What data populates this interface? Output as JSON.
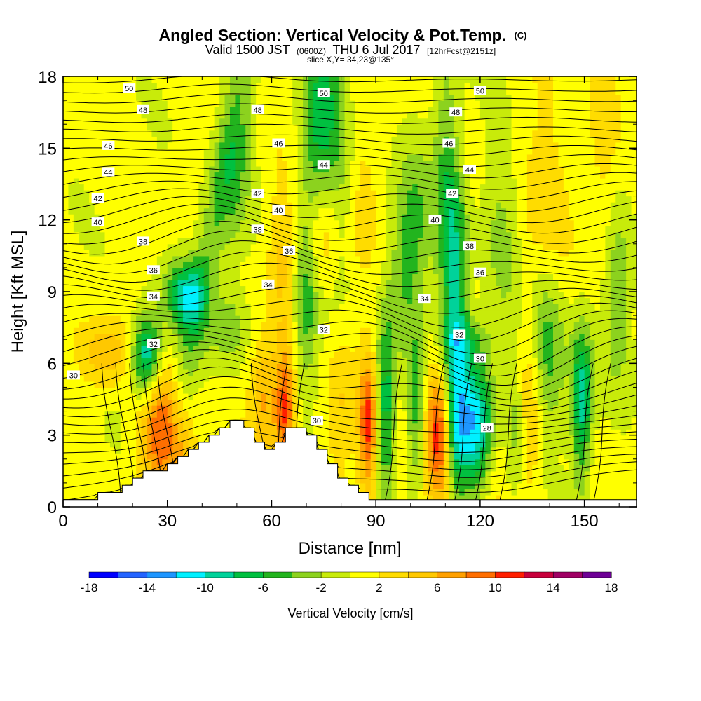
{
  "header": {
    "title": "Angled Section: Vertical Velocity & Pot.Temp.",
    "title_suffix": "(C)",
    "subtitle_a": "Valid 1500 JST",
    "subtitle_b": "(0600Z)",
    "subtitle_c": "THU 6 Jul 2017",
    "subtitle_d": "[12hrFcst@2151z]",
    "slice": "slice X,Y= 34,23@135°"
  },
  "chart_data": {
    "type": "heatmap",
    "xlabel": "Distance [nm]",
    "ylabel": "Height [Kft MSL]",
    "xlim": [
      0,
      165
    ],
    "ylim": [
      0,
      18
    ],
    "xticks": [
      0,
      30,
      60,
      90,
      120,
      150
    ],
    "yticks": [
      0,
      3,
      6,
      9,
      12,
      15,
      18
    ],
    "colorbar": {
      "label": "Vertical Velocity [cm/s]",
      "bounds": [
        -18,
        -16,
        -14,
        -12,
        -10,
        -8,
        -6,
        -4,
        -2,
        0,
        2,
        4,
        6,
        8,
        10,
        12,
        14,
        16,
        18
      ],
      "tick_labels": [
        "-18",
        "-14",
        "-10",
        "-6",
        "-2",
        "2",
        "6",
        "10",
        "14",
        "18"
      ],
      "colors": [
        "#0000ff",
        "#2464ff",
        "#1e96ff",
        "#00f0ff",
        "#00d29a",
        "#00c040",
        "#22b41e",
        "#8cd21e",
        "#c8eb0a",
        "#ffff00",
        "#ffdc00",
        "#ffc800",
        "#ffa000",
        "#ff6e00",
        "#ff1e00",
        "#c8003c",
        "#a00064",
        "#6e0096"
      ]
    },
    "terrain": [
      [
        0,
        0.3
      ],
      [
        10,
        0.3
      ],
      [
        10,
        0.6
      ],
      [
        17,
        0.6
      ],
      [
        17,
        0.9
      ],
      [
        20,
        0.9
      ],
      [
        20,
        1.2
      ],
      [
        23,
        1.2
      ],
      [
        23,
        1.5
      ],
      [
        30,
        1.5
      ],
      [
        30,
        1.8
      ],
      [
        33,
        1.8
      ],
      [
        33,
        2.1
      ],
      [
        36,
        2.1
      ],
      [
        36,
        2.4
      ],
      [
        39,
        2.4
      ],
      [
        39,
        2.7
      ],
      [
        42,
        2.7
      ],
      [
        42,
        3.0
      ],
      [
        45,
        3.0
      ],
      [
        45,
        3.3
      ],
      [
        48,
        3.3
      ],
      [
        48,
        3.6
      ],
      [
        52,
        3.6
      ],
      [
        52,
        3.3
      ],
      [
        55,
        3.3
      ],
      [
        55,
        2.7
      ],
      [
        58,
        2.7
      ],
      [
        58,
        2.4
      ],
      [
        61,
        2.4
      ],
      [
        61,
        2.7
      ],
      [
        64,
        2.7
      ],
      [
        64,
        3.3
      ],
      [
        70,
        3.3
      ],
      [
        70,
        3.0
      ],
      [
        73,
        3.0
      ],
      [
        73,
        2.4
      ],
      [
        76,
        2.4
      ],
      [
        76,
        1.8
      ],
      [
        79,
        1.8
      ],
      [
        79,
        1.2
      ],
      [
        82,
        1.2
      ],
      [
        82,
        0.9
      ],
      [
        85,
        0.9
      ],
      [
        85,
        0.6
      ],
      [
        88,
        0.6
      ],
      [
        88,
        0.3
      ],
      [
        165,
        0.3
      ]
    ],
    "isentropes": {
      "label": "Pot.Temp. (C)",
      "values": [
        28,
        30,
        32,
        34,
        36,
        38,
        40,
        42,
        44,
        46,
        48,
        50
      ]
    },
    "contour_labels": [
      {
        "text": "50",
        "x": 19,
        "y": 17.5
      },
      {
        "text": "50",
        "x": 75,
        "y": 17.3
      },
      {
        "text": "50",
        "x": 120,
        "y": 17.4
      },
      {
        "text": "48",
        "x": 23,
        "y": 16.6
      },
      {
        "text": "48",
        "x": 56,
        "y": 16.6
      },
      {
        "text": "48",
        "x": 113,
        "y": 16.5
      },
      {
        "text": "46",
        "x": 13,
        "y": 15.1
      },
      {
        "text": "46",
        "x": 62,
        "y": 15.2
      },
      {
        "text": "46",
        "x": 111,
        "y": 15.2
      },
      {
        "text": "44",
        "x": 13,
        "y": 14.0
      },
      {
        "text": "44",
        "x": 75,
        "y": 14.3
      },
      {
        "text": "44",
        "x": 117,
        "y": 14.1
      },
      {
        "text": "42",
        "x": 10,
        "y": 12.9
      },
      {
        "text": "42",
        "x": 56,
        "y": 13.1
      },
      {
        "text": "42",
        "x": 112,
        "y": 13.1
      },
      {
        "text": "40",
        "x": 10,
        "y": 11.9
      },
      {
        "text": "40",
        "x": 62,
        "y": 12.4
      },
      {
        "text": "40",
        "x": 107,
        "y": 12.0
      },
      {
        "text": "38",
        "x": 23,
        "y": 11.1
      },
      {
        "text": "38",
        "x": 56,
        "y": 11.6
      },
      {
        "text": "38",
        "x": 117,
        "y": 10.9
      },
      {
        "text": "36",
        "x": 26,
        "y": 9.9
      },
      {
        "text": "36",
        "x": 65,
        "y": 10.7
      },
      {
        "text": "36",
        "x": 120,
        "y": 9.8
      },
      {
        "text": "34",
        "x": 26,
        "y": 8.8
      },
      {
        "text": "34",
        "x": 59,
        "y": 9.3
      },
      {
        "text": "34",
        "x": 104,
        "y": 8.7
      },
      {
        "text": "32",
        "x": 26,
        "y": 6.8
      },
      {
        "text": "32",
        "x": 75,
        "y": 7.4
      },
      {
        "text": "32",
        "x": 114,
        "y": 7.2
      },
      {
        "text": "30",
        "x": 3,
        "y": 5.5
      },
      {
        "text": "30",
        "x": 73,
        "y": 3.6
      },
      {
        "text": "30",
        "x": 120,
        "y": 6.2
      },
      {
        "text": "28",
        "x": 122,
        "y": 3.3
      }
    ]
  }
}
